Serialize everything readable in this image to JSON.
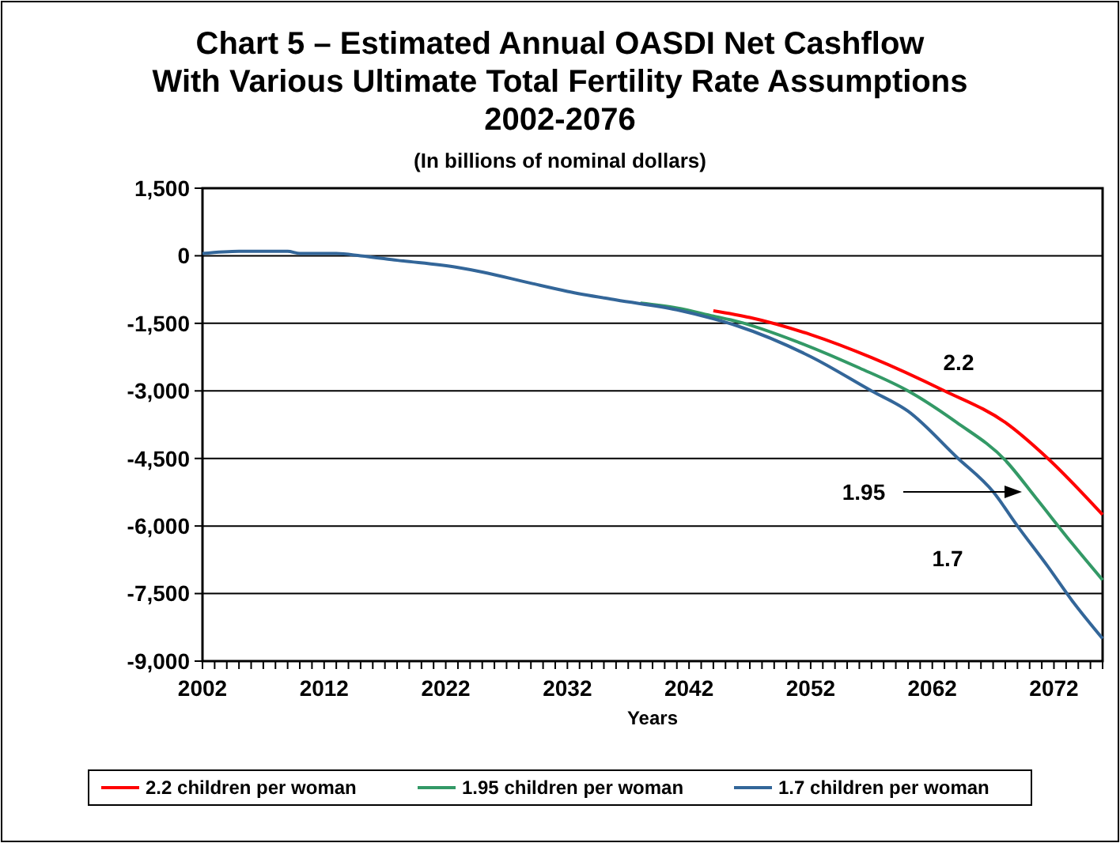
{
  "chart_data": {
    "type": "line",
    "title": "Chart 5 – Estimated Annual OASDI Net Cashflow\nWith Various Ultimate Total Fertility Rate Assumptions\n2002-2076",
    "subtitle": "(In billions of nominal dollars)",
    "xlabel": "Years",
    "series": [
      {
        "name": "2.2 children per woman",
        "color": "#ff0000",
        "x": [
          2044,
          2047,
          2052,
          2057,
          2063,
          2068,
          2071.5,
          2076
        ],
        "values": [
          -1220,
          -1370,
          -1750,
          -2260,
          -3000,
          -3700,
          -4500,
          -5750
        ]
      },
      {
        "name": "1.95 children per woman",
        "color": "#339966",
        "x": [
          2038,
          2041,
          2044,
          2046,
          2051,
          2056,
          2060,
          2064,
          2068,
          2070.5,
          2073.5,
          2076
        ],
        "values": [
          -1050,
          -1160,
          -1340,
          -1460,
          -1920,
          -2490,
          -3000,
          -3700,
          -4540,
          -5370,
          -6390,
          -7200
        ]
      },
      {
        "name": "1.7 children per woman",
        "color": "#336699",
        "x": [
          2002,
          2005,
          2009,
          2010,
          2013,
          2015,
          2018,
          2023,
          2025,
          2029,
          2032,
          2036,
          2041,
          2044,
          2046,
          2052,
          2057,
          2060,
          2064,
          2067,
          2069,
          2071.5,
          2073.5,
          2076
        ],
        "values": [
          50,
          100,
          100,
          50,
          50,
          0,
          -100,
          -260,
          -360,
          -610,
          -790,
          -980,
          -1200,
          -1400,
          -1560,
          -2240,
          -3000,
          -3450,
          -4470,
          -5240,
          -6000,
          -6900,
          -7660,
          -8500
        ]
      }
    ],
    "xlim": [
      2002,
      2076
    ],
    "xticks": [
      2002,
      {
        "value": 2003,
        "label": null
      },
      {
        "value": 2004,
        "label": null
      },
      {
        "value": 2005,
        "label": null
      },
      {
        "value": 2006,
        "label": null
      },
      {
        "value": 2007,
        "label": null
      },
      {
        "value": 2008,
        "label": null
      },
      {
        "value": 2009,
        "label": null
      },
      {
        "value": 2010,
        "label": null
      },
      {
        "value": 2011,
        "label": null
      },
      2012,
      {
        "value": 2013,
        "label": null
      },
      {
        "value": 2014,
        "label": null
      },
      {
        "value": 2015,
        "label": null
      },
      {
        "value": 2016,
        "label": null
      },
      {
        "value": 2017,
        "label": null
      },
      {
        "value": 2018,
        "label": null
      },
      {
        "value": 2019,
        "label": null
      },
      {
        "value": 2020,
        "label": null
      },
      {
        "value": 2021,
        "label": null
      },
      2022,
      {
        "value": 2023,
        "label": null
      },
      {
        "value": 2024,
        "label": null
      },
      {
        "value": 2025,
        "label": null
      },
      {
        "value": 2026,
        "label": null
      },
      {
        "value": 2027,
        "label": null
      },
      {
        "value": 2028,
        "label": null
      },
      {
        "value": 2029,
        "label": null
      },
      {
        "value": 2030,
        "label": null
      },
      {
        "value": 2031,
        "label": null
      },
      2032,
      {
        "value": 2033,
        "label": null
      },
      {
        "value": 2034,
        "label": null
      },
      {
        "value": 2035,
        "label": null
      },
      {
        "value": 2036,
        "label": null
      },
      {
        "value": 2037,
        "label": null
      },
      {
        "value": 2038,
        "label": null
      },
      {
        "value": 2039,
        "label": null
      },
      {
        "value": 2040,
        "label": null
      },
      {
        "value": 2041,
        "label": null
      },
      2042,
      {
        "value": 2043,
        "label": null
      },
      {
        "value": 2044,
        "label": null
      },
      {
        "value": 2045,
        "label": null
      },
      {
        "value": 2046,
        "label": null
      },
      {
        "value": 2047,
        "label": null
      },
      {
        "value": 2048,
        "label": null
      },
      {
        "value": 2049,
        "label": null
      },
      {
        "value": 2050,
        "label": null
      },
      {
        "value": 2051,
        "label": null
      },
      2052,
      {
        "value": 2053,
        "label": null
      },
      {
        "value": 2054,
        "label": null
      },
      {
        "value": 2055,
        "label": null
      },
      {
        "value": 2056,
        "label": null
      },
      {
        "value": 2057,
        "label": null
      },
      {
        "value": 2058,
        "label": null
      },
      {
        "value": 2059,
        "label": null
      },
      {
        "value": 2060,
        "label": null
      },
      {
        "value": 2061,
        "label": null
      },
      2062,
      {
        "value": 2063,
        "label": null
      },
      {
        "value": 2064,
        "label": null
      },
      {
        "value": 2065,
        "label": null
      },
      {
        "value": 2066,
        "label": null
      },
      {
        "value": 2067,
        "label": null
      },
      {
        "value": 2068,
        "label": null
      },
      {
        "value": 2069,
        "label": null
      },
      {
        "value": 2070,
        "label": null
      },
      {
        "value": 2071,
        "label": null
      },
      2072,
      {
        "value": 2073,
        "label": null
      },
      {
        "value": 2074,
        "label": null
      },
      {
        "value": 2075,
        "label": null
      },
      {
        "value": 2076,
        "label": null
      }
    ],
    "ylim": [
      -9000,
      1500
    ],
    "yticks": [
      {
        "value": -9000,
        "label": "-9,000"
      },
      {
        "value": -7500,
        "label": "-7,500"
      },
      {
        "value": -6000,
        "label": "-6,000"
      },
      {
        "value": -4500,
        "label": "-4,500"
      },
      {
        "value": -3000,
        "label": "-3,000"
      },
      {
        "value": -1500,
        "label": "-1,500"
      },
      0,
      {
        "value": 1500,
        "label": "1,500"
      }
    ],
    "grid": "y",
    "legend": "bottom",
    "marker": "none",
    "line_style": "solid",
    "annotations": [
      "2.2",
      "1.95",
      "1.7"
    ]
  }
}
